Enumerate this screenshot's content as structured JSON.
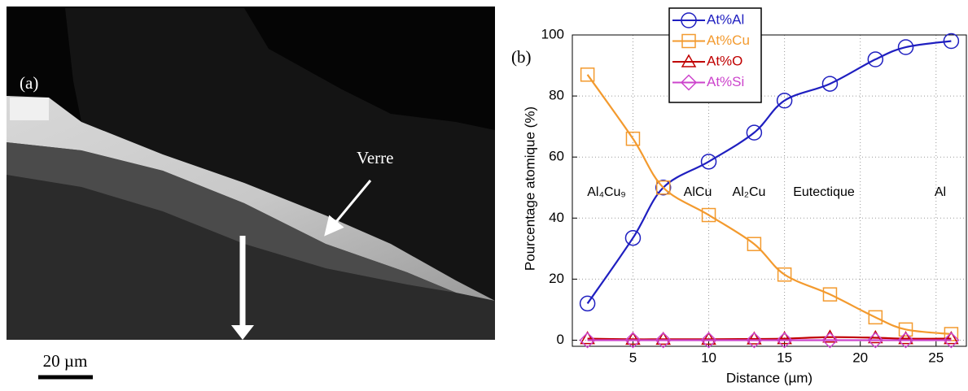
{
  "image": {
    "label": "(a)",
    "annotation": "Verre",
    "scale_bar": "20 µm"
  },
  "chart_data": {
    "type": "line",
    "label": "(b)",
    "x_label": "Distance (µm)",
    "y_label": "Pourcentage atomique (%)",
    "x": [
      2,
      5,
      7,
      10,
      13,
      15,
      18,
      21,
      23,
      26
    ],
    "series": [
      {
        "name": "At%Al",
        "color": "#1f1fc0",
        "marker": "circle",
        "values": [
          12,
          33.5,
          50,
          58.5,
          68,
          78.5,
          84,
          92,
          96,
          98
        ]
      },
      {
        "name": "At%Cu",
        "color": "#f39a2e",
        "marker": "square",
        "values": [
          87,
          66,
          50,
          41,
          31.5,
          21.5,
          15,
          7.5,
          3.5,
          2
        ]
      },
      {
        "name": "At%O",
        "color": "#c00000",
        "marker": "triangle",
        "values": [
          0.5,
          0.3,
          0.3,
          0.3,
          0.4,
          0.5,
          1,
          0.8,
          0.5,
          0.5
        ]
      },
      {
        "name": "At%Si",
        "color": "#cc44cc",
        "marker": "diamond",
        "values": [
          0,
          0,
          0,
          0,
          0,
          0,
          0,
          0,
          0,
          0
        ]
      }
    ],
    "annotations": [
      "Al₄Cu₉",
      "AlCu",
      "Al₂Cu",
      "Eutectique",
      "Al"
    ],
    "xlim": [
      1,
      27
    ],
    "ylim": [
      -2,
      100
    ],
    "xticks": [
      5,
      10,
      15,
      20,
      25
    ],
    "yticks": [
      0,
      20,
      40,
      60,
      80,
      100
    ],
    "grid": true,
    "legend": "upper left"
  }
}
